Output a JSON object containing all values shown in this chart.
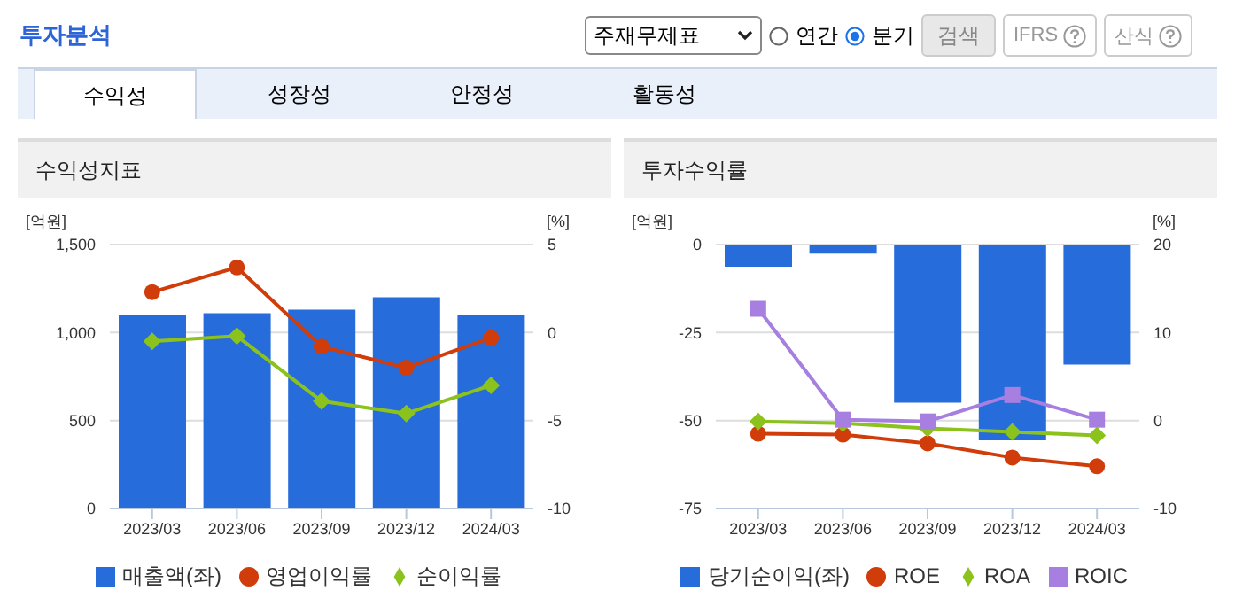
{
  "chart_data": [
    {
      "type": "bar",
      "title": "수익성지표",
      "annotations": [
        "투자분석",
        "주재무제표",
        "연간",
        "분기",
        "검색",
        "IFRS",
        "산식",
        "수익성",
        "성장성",
        "안정성",
        "활동성"
      ],
      "categories": [
        "2023/03",
        "2023/06",
        "2023/09",
        "2023/12",
        "2024/03"
      ],
      "series": [
        {
          "name": "매출액(좌)",
          "color": "#266cdb",
          "values": [
            1100,
            1110,
            1130,
            1200,
            1100
          ]
        },
        {
          "name": "영업이익률",
          "type": "line",
          "axis": "y2",
          "marker": "circle",
          "color": "#d03c0a",
          "values": [
            2.3,
            3.7,
            -0.8,
            -2.0,
            -0.3
          ]
        },
        {
          "name": "순이익률",
          "type": "line",
          "axis": "y2",
          "marker": "diamond",
          "color": "#8cc21c",
          "values": [
            -0.5,
            -0.2,
            -3.9,
            -4.6,
            -3.0
          ]
        }
      ],
      "ylabel": "[억원]",
      "y2label": "[%]",
      "ylim": [
        0,
        1500
      ],
      "yticks": [
        0,
        {
          "value": 500,
          "label": "500"
        },
        {
          "value": 1000,
          "label": "1,000"
        },
        {
          "value": 1500,
          "label": "1,500"
        }
      ],
      "y2lim": [
        -10,
        5
      ],
      "y2ticks": [
        -10,
        -5,
        0,
        5
      ],
      "grid": "y",
      "legend": "bottom"
    },
    {
      "type": "bar",
      "title": "투자수익률",
      "categories": [
        "2023/03",
        "2023/06",
        "2023/09",
        "2023/12",
        "2024/03"
      ],
      "series": [
        {
          "name": "당기순이익(좌)",
          "color": "#266cdb",
          "values": [
            -6.3,
            -2.6,
            -44.9,
            -55.6,
            -34.1
          ]
        },
        {
          "name": "ROE",
          "type": "line",
          "axis": "y2",
          "marker": "circle",
          "color": "#d03c0a",
          "values": [
            -1.5,
            -1.6,
            -2.6,
            -4.2,
            -5.2
          ]
        },
        {
          "name": "ROA",
          "type": "line",
          "axis": "y2",
          "marker": "diamond",
          "color": "#8cc21c",
          "values": [
            -0.1,
            -0.3,
            -0.9,
            -1.3,
            -1.7
          ]
        },
        {
          "name": "ROIC",
          "type": "line",
          "axis": "y2",
          "marker": "square",
          "color": "#a67fe0",
          "values": [
            12.7,
            0.1,
            -0.1,
            2.9,
            0.1
          ]
        }
      ],
      "ylabel": "[억원]",
      "y2label": "[%]",
      "ylim": [
        -75,
        0
      ],
      "yticks": [
        -75,
        -50,
        -25,
        0
      ],
      "y2lim": [
        -10,
        20
      ],
      "y2ticks": [
        -10,
        0,
        10,
        20
      ],
      "grid": "y",
      "legend": "bottom"
    }
  ]
}
